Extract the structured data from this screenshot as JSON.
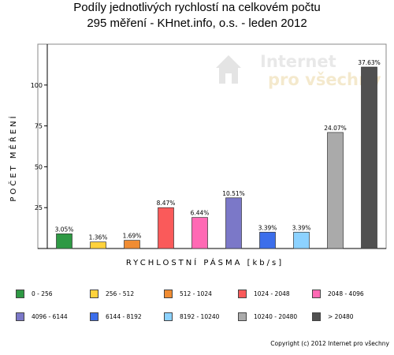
{
  "chart_data": {
    "type": "bar",
    "title": "Podíly jednotlivých rychlostí na celkovém počtu",
    "subtitle": "295 měření - KHnet.info, o.s. - leden 2012",
    "ylabel": "POČET MĚŘENÍ",
    "xlabel": "RYCHLOSTNÍ PÁSMA [kb/s]",
    "ylim": [
      0,
      125
    ],
    "yticks": [
      25,
      50,
      75,
      100
    ],
    "grid": false,
    "legend_position": "bottom",
    "categories": [
      "0 - 256",
      "256 - 512",
      "512 - 1024",
      "1024 - 2048",
      "2048 - 4096",
      "4096 - 6144",
      "6144 - 8192",
      "8192 - 10240",
      "10240 - 20480",
      "> 20480"
    ],
    "values": [
      9,
      4,
      5,
      25,
      19,
      31,
      10,
      10,
      71,
      111
    ],
    "data_labels": [
      "3.05%",
      "1.36%",
      "1.69%",
      "8.47%",
      "6.44%",
      "10.51%",
      "3.39%",
      "3.39%",
      "24.07%",
      "37.63%"
    ],
    "colors": [
      "#2e9944",
      "#ffd23c",
      "#f08c32",
      "#fa5a5a",
      "#ff69b4",
      "#7b78c8",
      "#3c6eeb",
      "#8cd2ff",
      "#aaaaaa",
      "#505050"
    ]
  },
  "watermark": {
    "line1": "Internet",
    "line2": "pro všechny"
  },
  "copyright": "Copyright (c) 2012 Internet pro všechny"
}
